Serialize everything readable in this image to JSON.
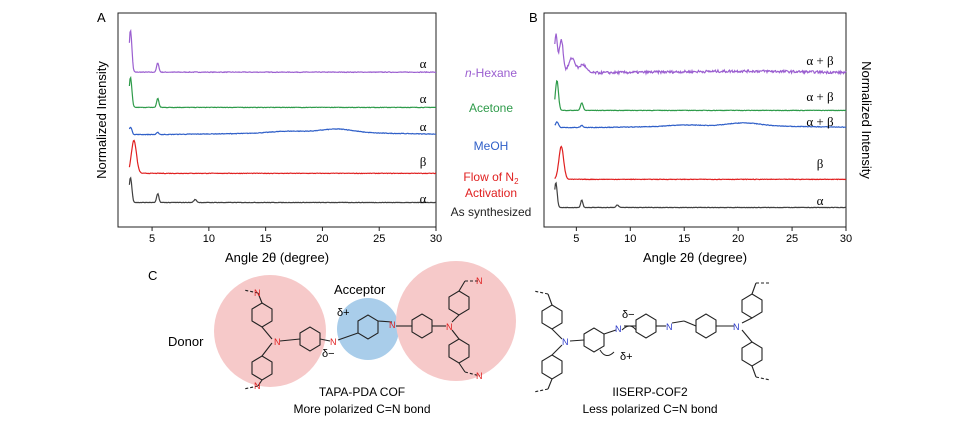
{
  "panels": {
    "a": "A",
    "b": "B",
    "c": "C"
  },
  "colors": {
    "hexane": "#9b5fd0",
    "acetone": "#2e9b4a",
    "meoh": "#2f5fc8",
    "n2": "#e02020",
    "synth": "#404040",
    "donor_bg": "#f6c9c9",
    "acceptor_bg": "#a9cdea",
    "nitrogen": "#e02020",
    "nitrogen2": "#2a39c9"
  },
  "solvent_labels": [
    {
      "key": "hexane",
      "italic": "n",
      "text": "-Hexane"
    },
    {
      "key": "acetone",
      "italic": "",
      "text": "Acetone"
    },
    {
      "key": "meoh",
      "italic": "",
      "text": "MeOH"
    },
    {
      "key": "n2",
      "italic": "",
      "text": "Flow of N",
      "sub": "2",
      "line2": "Activation"
    },
    {
      "key": "synth",
      "italic": "",
      "text": "As synthesized"
    }
  ],
  "chart_data": [
    {
      "type": "line",
      "panel": "A",
      "xlabel": "Angle 2θ (degree)",
      "ylabel": "Normalized Intensity",
      "xlim": [
        2,
        30
      ],
      "xticks": [
        5,
        10,
        15,
        20,
        25,
        30
      ],
      "series": [
        {
          "key": "hexane",
          "phase": "α",
          "baseline": 0.02,
          "peaks": [
            [
              3.1,
              1.0,
              0.12
            ],
            [
              5.5,
              0.22,
              0.1
            ]
          ],
          "hump": 0.0
        },
        {
          "key": "acetone",
          "phase": "α",
          "baseline": 0.02,
          "peaks": [
            [
              3.1,
              1.0,
              0.12
            ],
            [
              5.5,
              0.3,
              0.1
            ]
          ],
          "hump": 0.0
        },
        {
          "key": "meoh",
          "phase": "α",
          "baseline": 0.05,
          "peaks": [
            [
              3.1,
              0.75,
              0.12
            ],
            [
              5.5,
              0.2,
              0.1
            ],
            [
              21.3,
              0.35,
              1.4
            ],
            [
              17.0,
              0.18,
              1.6
            ]
          ],
          "hump": 0.55
        },
        {
          "key": "n2",
          "phase": "β",
          "baseline": 0.02,
          "peaks": [
            [
              3.4,
              1.0,
              0.22
            ]
          ],
          "hump": 0.0
        },
        {
          "key": "synth",
          "phase": "α",
          "baseline": 0.02,
          "peaks": [
            [
              3.1,
              1.0,
              0.12
            ],
            [
              5.5,
              0.35,
              0.1
            ],
            [
              8.8,
              0.12,
              0.12
            ]
          ],
          "hump": 0.0
        }
      ]
    },
    {
      "type": "line",
      "panel": "B",
      "xlabel": "Angle 2θ (degree)",
      "ylabel": "Normalized Intensity",
      "xlim": [
        2,
        30
      ],
      "xticks": [
        5,
        10,
        15,
        20,
        25,
        30
      ],
      "series": [
        {
          "key": "hexane",
          "phase": "α + β",
          "baseline": 0.05,
          "peaks": [
            [
              3.1,
              0.9,
              0.14
            ],
            [
              3.6,
              0.8,
              0.18
            ],
            [
              4.6,
              0.35,
              0.3
            ],
            [
              5.6,
              0.2,
              0.3
            ]
          ],
          "hump": 0.12
        },
        {
          "key": "acetone",
          "phase": "α + β",
          "baseline": 0.02,
          "peaks": [
            [
              3.2,
              1.0,
              0.14
            ],
            [
              5.5,
              0.25,
              0.12
            ]
          ],
          "hump": 0.0
        },
        {
          "key": "meoh",
          "phase": "α + β",
          "baseline": 0.05,
          "peaks": [
            [
              3.2,
              0.55,
              0.14
            ],
            [
              5.5,
              0.2,
              0.12
            ],
            [
              20.5,
              0.3,
              1.5
            ],
            [
              15.0,
              0.15,
              1.6
            ]
          ],
          "hump": 0.45
        },
        {
          "key": "n2",
          "phase": "β",
          "baseline": 0.02,
          "peaks": [
            [
              3.6,
              1.0,
              0.22
            ]
          ],
          "hump": 0.0
        },
        {
          "key": "synth",
          "phase": "α",
          "baseline": 0.02,
          "peaks": [
            [
              3.1,
              1.0,
              0.12
            ],
            [
              5.5,
              0.3,
              0.1
            ],
            [
              8.8,
              0.1,
              0.12
            ]
          ],
          "hump": 0.0
        }
      ]
    }
  ],
  "structures": {
    "left_labels": {
      "donor": "Donor",
      "acceptor": "Acceptor",
      "delta_plus": "δ+",
      "delta_minus": "δ−",
      "n": "N"
    },
    "left_caption": [
      "TAPA-PDA COF",
      "More polarized C=N bond"
    ],
    "right_labels": {
      "delta_plus": "δ+",
      "delta_minus": "δ−",
      "n": "N"
    },
    "right_caption": [
      "IISERP-COF2",
      "Less polarized C=N bond"
    ]
  }
}
